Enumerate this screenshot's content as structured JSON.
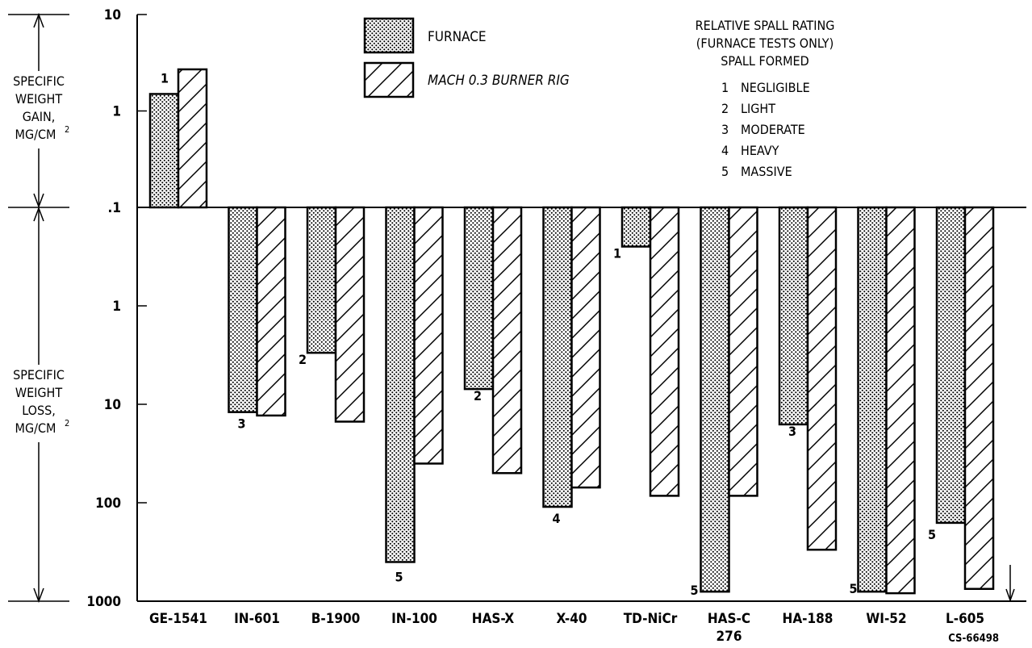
{
  "chart_data": {
    "type": "bar",
    "y_scale": "log, diverging at 0.1 (gain above, loss below)",
    "y_ticks_gain": [
      "10",
      "1",
      ".1"
    ],
    "y_ticks_loss": [
      "1",
      "10",
      "100",
      "1000"
    ],
    "ylabel_gain": [
      "SPECIFIC",
      "WEIGHT",
      "GAIN,",
      "MG/CM",
      "2"
    ],
    "ylabel_loss": [
      "SPECIFIC",
      "WEIGHT",
      "LOSS,",
      "MG/CM",
      "2"
    ],
    "categories": [
      "GE-1541",
      "IN-601",
      "B-1900",
      "IN-100",
      "HAS-X",
      "X-40",
      "TD-NiCr",
      "HAS-C 276",
      "HA-188",
      "WI-52",
      "L-605"
    ],
    "category_lines": [
      [
        "GE-1541"
      ],
      [
        "IN-601"
      ],
      [
        "B-1900"
      ],
      [
        "IN-100"
      ],
      [
        "HAS-X"
      ],
      [
        "X-40"
      ],
      [
        "TD-NiCr"
      ],
      [
        "HAS-C",
        "276"
      ],
      [
        "HA-188"
      ],
      [
        "WI-52"
      ],
      [
        "L-605"
      ]
    ],
    "series": [
      {
        "name": "FURNACE",
        "pattern": "dotted",
        "values": [
          1.5,
          12,
          3,
          400,
          7,
          110,
          0.25,
          800,
          16,
          800,
          160
        ],
        "direction": [
          "gain",
          "loss",
          "loss",
          "loss",
          "loss",
          "loss",
          "loss",
          "loss",
          "loss",
          "loss",
          "loss"
        ]
      },
      {
        "name": "MACH 0.3 BURNER RIG",
        "pattern": "hatched",
        "values": [
          2.7,
          13,
          15,
          40,
          50,
          70,
          85,
          85,
          300,
          830,
          750
        ],
        "direction": [
          "gain",
          "loss",
          "loss",
          "loss",
          "loss",
          "loss",
          "loss",
          "loss",
          "loss",
          "loss",
          "loss"
        ]
      }
    ],
    "spall_ratings": [
      "1",
      "3",
      "2",
      "5",
      "2",
      "4",
      "1",
      "5",
      "3",
      "5",
      "5"
    ],
    "spall_legend": {
      "title": [
        "RELATIVE SPALL RATING",
        "(FURNACE TESTS ONLY)",
        "SPALL FORMED"
      ],
      "items": [
        {
          "num": "1",
          "label": "NEGLIGIBLE"
        },
        {
          "num": "2",
          "label": "LIGHT"
        },
        {
          "num": "3",
          "label": "MODERATE"
        },
        {
          "num": "4",
          "label": "HEAVY"
        },
        {
          "num": "5",
          "label": "MASSIVE"
        }
      ]
    },
    "figure_code": "CS-66498"
  }
}
